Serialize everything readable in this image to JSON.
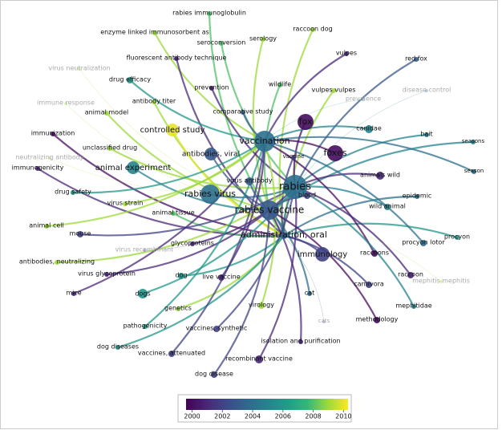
{
  "nodes": [
    {
      "label": "rabies immunoglobulin",
      "year": 2008
    },
    {
      "label": "enzyme linked immunosorbent as",
      "year": 2009
    },
    {
      "label": "seroconversion",
      "year": 2008
    },
    {
      "label": "serology",
      "year": 2009
    },
    {
      "label": "raccoon dog",
      "year": 2009
    },
    {
      "label": "vulpes",
      "year": 2001
    },
    {
      "label": "red fox",
      "year": 2003
    },
    {
      "label": "virus neutralization",
      "year": 2009
    },
    {
      "label": "fluorescent antibody technique",
      "year": 2001
    },
    {
      "label": "drug efficacy",
      "year": 2006
    },
    {
      "label": "prevention",
      "year": 2001
    },
    {
      "label": "wildlife",
      "year": 2008
    },
    {
      "label": "vulpes vulpes",
      "year": 2009
    },
    {
      "label": "prevalence",
      "year": 2006
    },
    {
      "label": "disease control",
      "year": 2005
    },
    {
      "label": "immune response",
      "year": 2009
    },
    {
      "label": "antibody titer",
      "year": 2009
    },
    {
      "label": "comparative study",
      "year": 2003
    },
    {
      "label": "fox",
      "year": 2000
    },
    {
      "label": "animal model",
      "year": 2009
    },
    {
      "label": "controlled study",
      "year": 2010
    },
    {
      "label": "canidae",
      "year": 2005
    },
    {
      "label": "bait",
      "year": 2005
    },
    {
      "label": "seasons",
      "year": 2005
    },
    {
      "label": "immunization",
      "year": 2000
    },
    {
      "label": "vaccination",
      "year": 2004
    },
    {
      "label": "unclassified drug",
      "year": 2009
    },
    {
      "label": "antibodies, viral",
      "year": 2003
    },
    {
      "label": "vaccine",
      "year": 2002
    },
    {
      "label": "foxes",
      "year": 2000
    },
    {
      "label": "neutralizing antibody",
      "year": 2009
    },
    {
      "label": "animal experiment",
      "year": 2005
    },
    {
      "label": "immunogenicity",
      "year": 2001
    },
    {
      "label": "season",
      "year": 2004
    },
    {
      "label": "animals wild",
      "year": 2001
    },
    {
      "label": "virus antibody",
      "year": 2003
    },
    {
      "label": "rabies",
      "year": 2004
    },
    {
      "label": "drug safety",
      "year": 2006
    },
    {
      "label": "rabies virus",
      "year": 2004
    },
    {
      "label": "blood",
      "year": 2002
    },
    {
      "label": "epidemic",
      "year": 2004
    },
    {
      "label": "virus strain",
      "year": 2009
    },
    {
      "label": "wild animal",
      "year": 2005
    },
    {
      "label": "rabies vaccine",
      "year": 2003
    },
    {
      "label": "animal tissue",
      "year": 2008
    },
    {
      "label": "animal cell",
      "year": 2009
    },
    {
      "label": "mouse",
      "year": 2002
    },
    {
      "label": "administration, oral",
      "year": 2003
    },
    {
      "label": "procyon",
      "year": 2006
    },
    {
      "label": "procyon lotor",
      "year": 2004
    },
    {
      "label": "glycoproteins",
      "year": 2001
    },
    {
      "label": "virus recombinant",
      "year": 2001
    },
    {
      "label": "immunology",
      "year": 2002
    },
    {
      "label": "raccoons",
      "year": 2000
    },
    {
      "label": "antibodies, neutralizing",
      "year": 2009
    },
    {
      "label": "virus glycoprotein",
      "year": 2001
    },
    {
      "label": "dog",
      "year": 2006
    },
    {
      "label": "live vaccine",
      "year": 2001
    },
    {
      "label": "raccoon",
      "year": 2001
    },
    {
      "label": "mephitis mephitis",
      "year": 2009
    },
    {
      "label": "carnivora",
      "year": 2002
    },
    {
      "label": "mice",
      "year": 2001
    },
    {
      "label": "dogs",
      "year": 2006
    },
    {
      "label": "cat",
      "year": 2004
    },
    {
      "label": "genetics",
      "year": 2009
    },
    {
      "label": "virology",
      "year": 2009
    },
    {
      "label": "mephitidae",
      "year": 2005
    },
    {
      "label": "methodology",
      "year": 2000
    },
    {
      "label": "cats",
      "year": 2003
    },
    {
      "label": "pathogenicity",
      "year": 2006
    },
    {
      "label": "vaccines, synthetic",
      "year": 2002
    },
    {
      "label": "isolation and purification",
      "year": 2001
    },
    {
      "label": "dog diseases",
      "year": 2006
    },
    {
      "label": "vaccines, attenuated",
      "year": 2002
    },
    {
      "label": "recombinant vaccine",
      "year": 2001
    },
    {
      "label": "dog disease",
      "year": 2002
    }
  ],
  "colorbar": {
    "range": [
      1999.6,
      2010.3
    ],
    "ticks": [
      2000,
      2002,
      2004,
      2006,
      2008,
      2010
    ]
  }
}
